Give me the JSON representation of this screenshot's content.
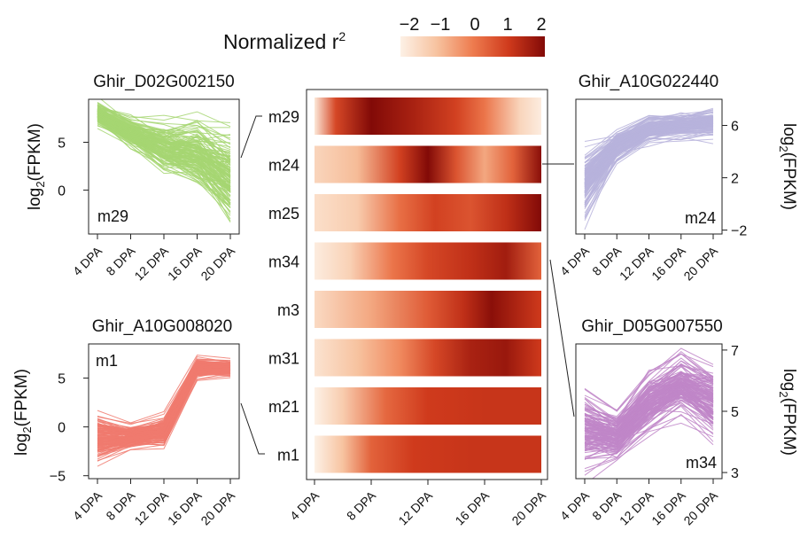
{
  "chart_data": {
    "type": "heatmap",
    "legend": {
      "label": "Normalized r",
      "label_sup": "2",
      "ticks": [
        "−2",
        "−1",
        "0",
        "1",
        "2"
      ],
      "range": [
        -2,
        2
      ],
      "colors": [
        "#fdf1e6",
        "#f7c3a0",
        "#ee7c4f",
        "#cf3a1c",
        "#820a07"
      ]
    },
    "xaxis": {
      "stages": [
        "4 DPA",
        "8 DPA",
        "12 DPA",
        "16 DPA",
        "20 DPA"
      ],
      "stage_values": [
        4,
        8,
        12,
        16,
        20
      ]
    },
    "heatmap": {
      "rows": [
        {
          "module": "m29",
          "values": [
            -1.8,
            0.8,
            2.0,
            1.5,
            0.9,
            0.1,
            -1.4,
            -1.9
          ],
          "positions": [
            4,
            5.5,
            8,
            11,
            14,
            16,
            18.5,
            20
          ]
        },
        {
          "module": "m24",
          "values": [
            -1.4,
            -0.9,
            0.9,
            2.0,
            0.6,
            -0.6,
            0.4,
            1.9
          ],
          "positions": [
            4,
            7,
            10,
            12,
            14,
            16,
            18,
            20
          ]
        },
        {
          "module": "m25",
          "values": [
            -1.6,
            -1.2,
            0.2,
            0.9,
            0.6,
            1.2,
            2.0
          ],
          "positions": [
            4,
            7,
            10,
            12.5,
            15,
            17.5,
            20
          ]
        },
        {
          "module": "m34",
          "values": [
            -1.9,
            -1.3,
            0.1,
            0.8,
            1.2,
            1.6,
            0.4
          ],
          "positions": [
            4,
            6.5,
            9.5,
            12,
            15,
            17.5,
            20
          ]
        },
        {
          "module": "m3",
          "values": [
            -1.5,
            -0.6,
            0.5,
            1.2,
            1.9,
            1.0
          ],
          "positions": [
            4,
            8,
            12,
            14.5,
            16.5,
            20
          ]
        },
        {
          "module": "m31",
          "values": [
            -1.7,
            -1.0,
            -0.2,
            0.8,
            1.5,
            1.7,
            1.0
          ],
          "positions": [
            4,
            7,
            10,
            12.5,
            15,
            17.5,
            20
          ]
        },
        {
          "module": "m21",
          "values": [
            -2.0,
            -1.2,
            0.3,
            1.0,
            1.1,
            1.1
          ],
          "positions": [
            4,
            6,
            9,
            12,
            16,
            20
          ]
        },
        {
          "module": "m1",
          "values": [
            -2.0,
            -1.0,
            0.4,
            1.0,
            1.1,
            1.1
          ],
          "positions": [
            4,
            6,
            8,
            11,
            15,
            20
          ]
        }
      ]
    },
    "line_panels": [
      {
        "gene": "Ghir_D02G002150",
        "module": "m29",
        "color": "#a6d672",
        "ylabel_main": "log",
        "ylabel_sub": "2",
        "ylabel_tail": "(FPKM)",
        "yticks": [
          "5",
          "0"
        ],
        "ytick_values": [
          5,
          0
        ],
        "ylim": [
          -4.6,
          9.5
        ],
        "mean_profile": [
          8.0,
          6.0,
          4.4,
          3.8,
          1.4
        ],
        "spread": [
          0.8,
          1.0,
          1.6,
          2.2,
          3.0
        ]
      },
      {
        "gene": "Ghir_A10G022440",
        "module": "m24",
        "color": "#b7b3dc",
        "ylabel_main": "log",
        "ylabel_sub": "2",
        "ylabel_tail": "(FPKM)",
        "yticks": [
          "6",
          "2",
          "−2"
        ],
        "ytick_values": [
          6,
          2,
          -2
        ],
        "ylim": [
          -2.3,
          8.0
        ],
        "mean_profile": [
          1.5,
          4.4,
          5.7,
          6.0,
          6.2
        ],
        "spread": [
          1.4,
          0.7,
          0.5,
          0.5,
          0.6
        ]
      },
      {
        "gene": "Ghir_A10G008020",
        "module": "m1",
        "color": "#f07a6e",
        "ylabel_main": "log",
        "ylabel_sub": "2",
        "ylabel_tail": "(FPKM)",
        "yticks": [
          "5",
          "0",
          "−5"
        ],
        "ytick_values": [
          5,
          0,
          -5
        ],
        "ylim": [
          -5.3,
          8.5
        ],
        "mean_profile": [
          -1.2,
          -1.0,
          -0.5,
          6.0,
          6.0
        ],
        "spread": [
          1.4,
          0.7,
          0.9,
          0.6,
          0.5
        ]
      },
      {
        "gene": "Ghir_D05G007550",
        "module": "m34",
        "color": "#c086c8",
        "ylabel_main": "log",
        "ylabel_sub": "2",
        "ylabel_tail": "(FPKM)",
        "yticks": [
          "7",
          "5",
          "3"
        ],
        "ytick_values": [
          7,
          5,
          3
        ],
        "ylim": [
          2.8,
          7.2
        ],
        "mean_profile": [
          4.4,
          4.2,
          5.3,
          5.9,
          5.3
        ],
        "spread": [
          0.6,
          0.4,
          0.5,
          0.5,
          0.6
        ]
      }
    ]
  }
}
